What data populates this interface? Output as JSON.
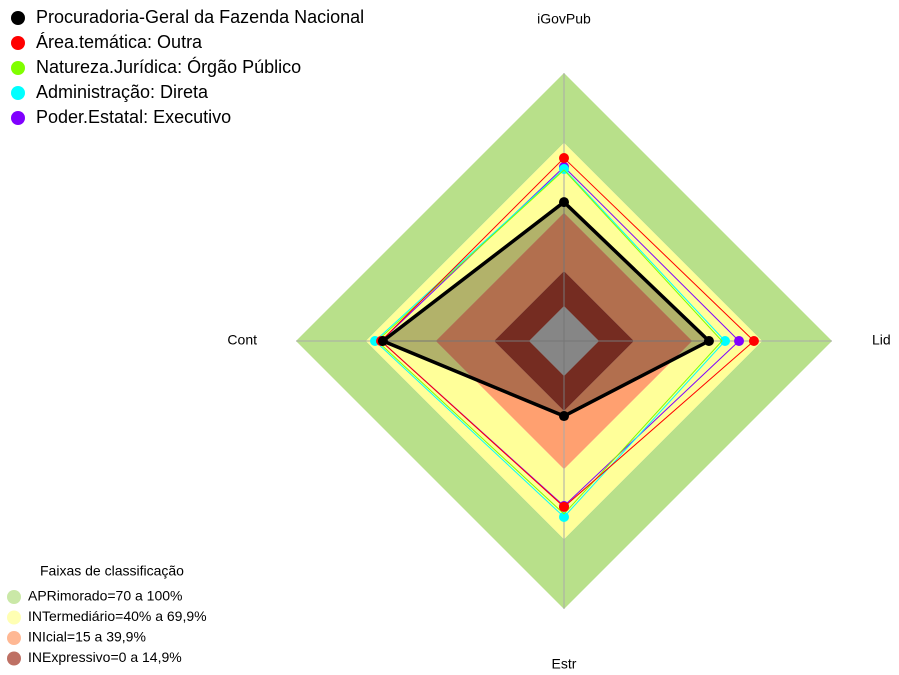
{
  "chart_data": {
    "type": "radar",
    "axes": [
      "iGovPub",
      "Lid",
      "Estr",
      "Cont"
    ],
    "ylim": [
      -15,
      100
    ],
    "series": [
      {
        "name": "Procuradoria-Geral da Fazenda Nacional",
        "color": "#000000",
        "values": [
          44.6,
          47.2,
          17.2,
          62.7
        ]
      },
      {
        "name": "Área.temática: Outra",
        "color": "#ff0000",
        "values": [
          63.5,
          66.5,
          56.2,
          63.5
        ]
      },
      {
        "name": "Natureza.Jurídica: Órgão Público",
        "color": "#80ff00",
        "values": [
          58.4,
          52.8,
          59.2,
          65.2
        ]
      },
      {
        "name": "Administração: Direta",
        "color": "#00ffff",
        "values": [
          58.8,
          54.1,
          60.5,
          66.1
        ]
      },
      {
        "name": "Poder.Estatal: Executivo",
        "color": "#8000ff",
        "values": [
          59.7,
          60.1,
          55.8,
          63.5
        ]
      }
    ],
    "bands_title": "Faixas de classificação",
    "bands": [
      {
        "name": "APRimorado=70 a 100%",
        "from": 70,
        "to": 100,
        "color": "#b8e08a"
      },
      {
        "name": "INTermediário=40% a 69,9%",
        "from": 40,
        "to": 70,
        "color": "#ffff99"
      },
      {
        "name": "INIcial=15 a 39,9%",
        "from": 15,
        "to": 40,
        "color": "#ffa070"
      },
      {
        "name": "INExpressivo=0 a 14,9%",
        "from": 0,
        "to": 15,
        "color": "#a84030"
      }
    ]
  }
}
